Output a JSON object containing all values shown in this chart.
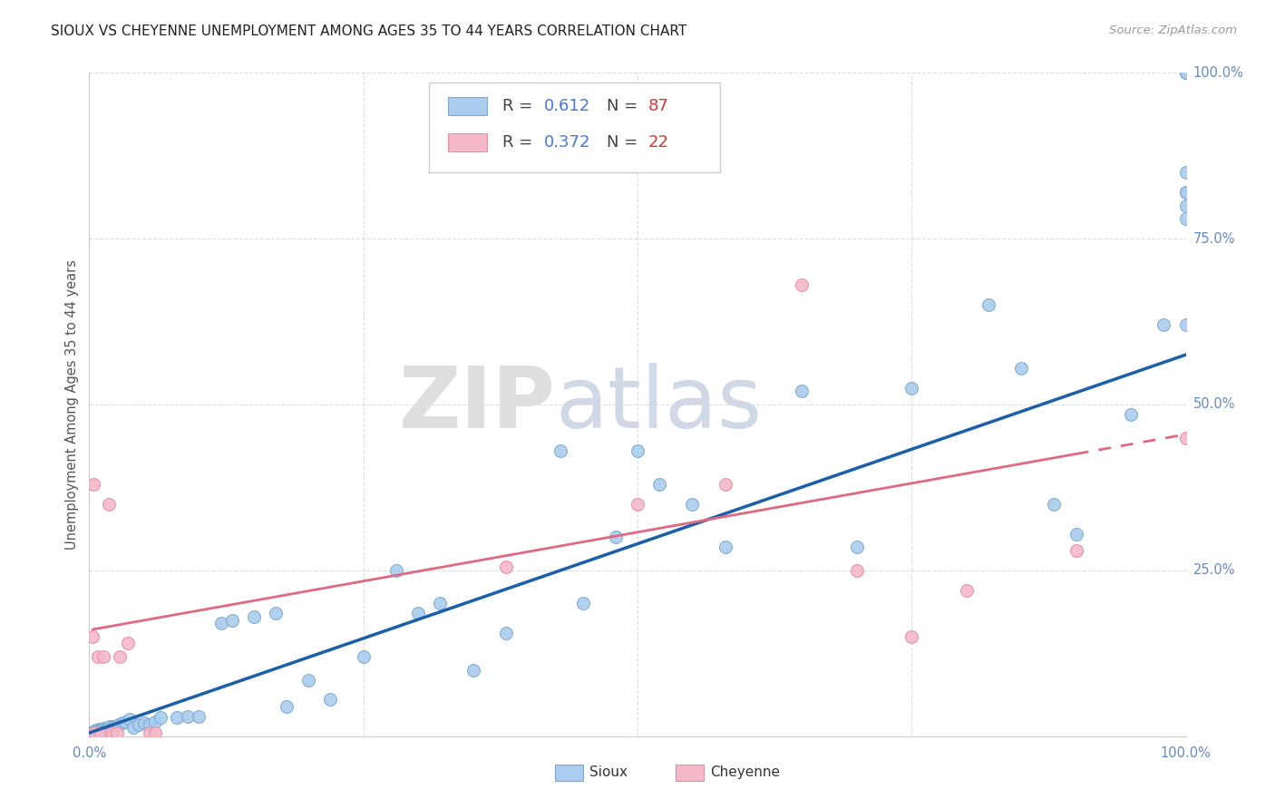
{
  "title": "SIOUX VS CHEYENNE UNEMPLOYMENT AMONG AGES 35 TO 44 YEARS CORRELATION CHART",
  "source": "Source: ZipAtlas.com",
  "ylabel": "Unemployment Among Ages 35 to 44 years",
  "xlim": [
    0.0,
    1.0
  ],
  "ylim": [
    0.0,
    1.0
  ],
  "xtick_positions": [
    0.0,
    1.0
  ],
  "xticklabels": [
    "0.0%",
    "100.0%"
  ],
  "ytick_positions": [
    0.25,
    0.5,
    0.75,
    1.0
  ],
  "yticklabels": [
    "25.0%",
    "50.0%",
    "75.0%",
    "100.0%"
  ],
  "sioux_color": "#aaccee",
  "sioux_edge_color": "#7aaad0",
  "cheyenne_color": "#f4b8c8",
  "cheyenne_edge_color": "#e88aaa",
  "trend_sioux_color": "#1a5fa8",
  "trend_cheyenne_color": "#e06880",
  "background_color": "#ffffff",
  "grid_color": "#dddddd",
  "tick_label_color": "#6688cc",
  "sioux_R": "0.612",
  "sioux_N": "87",
  "cheyenne_R": "0.372",
  "cheyenne_N": "22",
  "R_color": "#4477dd",
  "N_color": "#dd3333",
  "sioux_x": [
    0.002,
    0.003,
    0.003,
    0.004,
    0.004,
    0.005,
    0.005,
    0.005,
    0.006,
    0.006,
    0.006,
    0.007,
    0.007,
    0.008,
    0.008,
    0.009,
    0.009,
    0.01,
    0.01,
    0.01,
    0.011,
    0.011,
    0.012,
    0.012,
    0.013,
    0.013,
    0.014,
    0.015,
    0.016,
    0.017,
    0.018,
    0.019,
    0.02,
    0.022,
    0.023,
    0.025,
    0.027,
    0.03,
    0.033,
    0.037,
    0.04,
    0.045,
    0.05,
    0.055,
    0.06,
    0.065,
    0.08,
    0.09,
    0.1,
    0.12,
    0.13,
    0.15,
    0.17,
    0.18,
    0.2,
    0.22,
    0.25,
    0.28,
    0.3,
    0.32,
    0.35,
    0.38,
    0.43,
    0.45,
    0.48,
    0.5,
    0.52,
    0.55,
    0.58,
    0.65,
    0.7,
    0.75,
    0.82,
    0.85,
    0.88,
    0.9,
    0.95,
    0.98,
    1.0,
    1.0,
    1.0,
    1.0,
    1.0,
    1.0,
    1.0,
    1.0,
    1.0
  ],
  "sioux_y": [
    0.004,
    0.004,
    0.006,
    0.005,
    0.007,
    0.004,
    0.006,
    0.008,
    0.005,
    0.007,
    0.009,
    0.005,
    0.008,
    0.006,
    0.009,
    0.007,
    0.01,
    0.005,
    0.008,
    0.01,
    0.007,
    0.01,
    0.006,
    0.01,
    0.008,
    0.012,
    0.009,
    0.012,
    0.01,
    0.013,
    0.012,
    0.015,
    0.012,
    0.015,
    0.014,
    0.016,
    0.018,
    0.02,
    0.022,
    0.025,
    0.013,
    0.018,
    0.02,
    0.018,
    0.022,
    0.028,
    0.028,
    0.03,
    0.03,
    0.17,
    0.175,
    0.18,
    0.185,
    0.045,
    0.085,
    0.055,
    0.12,
    0.25,
    0.185,
    0.2,
    0.1,
    0.155,
    0.43,
    0.2,
    0.3,
    0.43,
    0.38,
    0.35,
    0.285,
    0.52,
    0.285,
    0.525,
    0.65,
    0.555,
    0.35,
    0.305,
    0.485,
    0.62,
    0.78,
    0.8,
    0.82,
    0.85,
    1.0,
    1.0,
    1.0,
    0.82,
    0.62
  ],
  "cheyenne_x": [
    0.003,
    0.004,
    0.005,
    0.008,
    0.01,
    0.013,
    0.018,
    0.02,
    0.025,
    0.028,
    0.035,
    0.055,
    0.06,
    0.38,
    0.5,
    0.58,
    0.65,
    0.7,
    0.75,
    0.8,
    0.9,
    1.0
  ],
  "cheyenne_y": [
    0.15,
    0.38,
    0.005,
    0.12,
    0.005,
    0.12,
    0.35,
    0.005,
    0.005,
    0.12,
    0.14,
    0.005,
    0.005,
    0.255,
    0.35,
    0.38,
    0.68,
    0.25,
    0.15,
    0.22,
    0.28,
    0.45
  ],
  "trend_sioux_x0": 0.0,
  "trend_sioux_x1": 1.0,
  "trend_sioux_y0": 0.005,
  "trend_sioux_y1": 0.575,
  "trend_cheyenne_solid_x0": 0.003,
  "trend_cheyenne_solid_x1": 0.9,
  "trend_cheyenne_x0": 0.0,
  "trend_cheyenne_x1": 1.0,
  "trend_cheyenne_y0": 0.16,
  "trend_cheyenne_y1": 0.455
}
